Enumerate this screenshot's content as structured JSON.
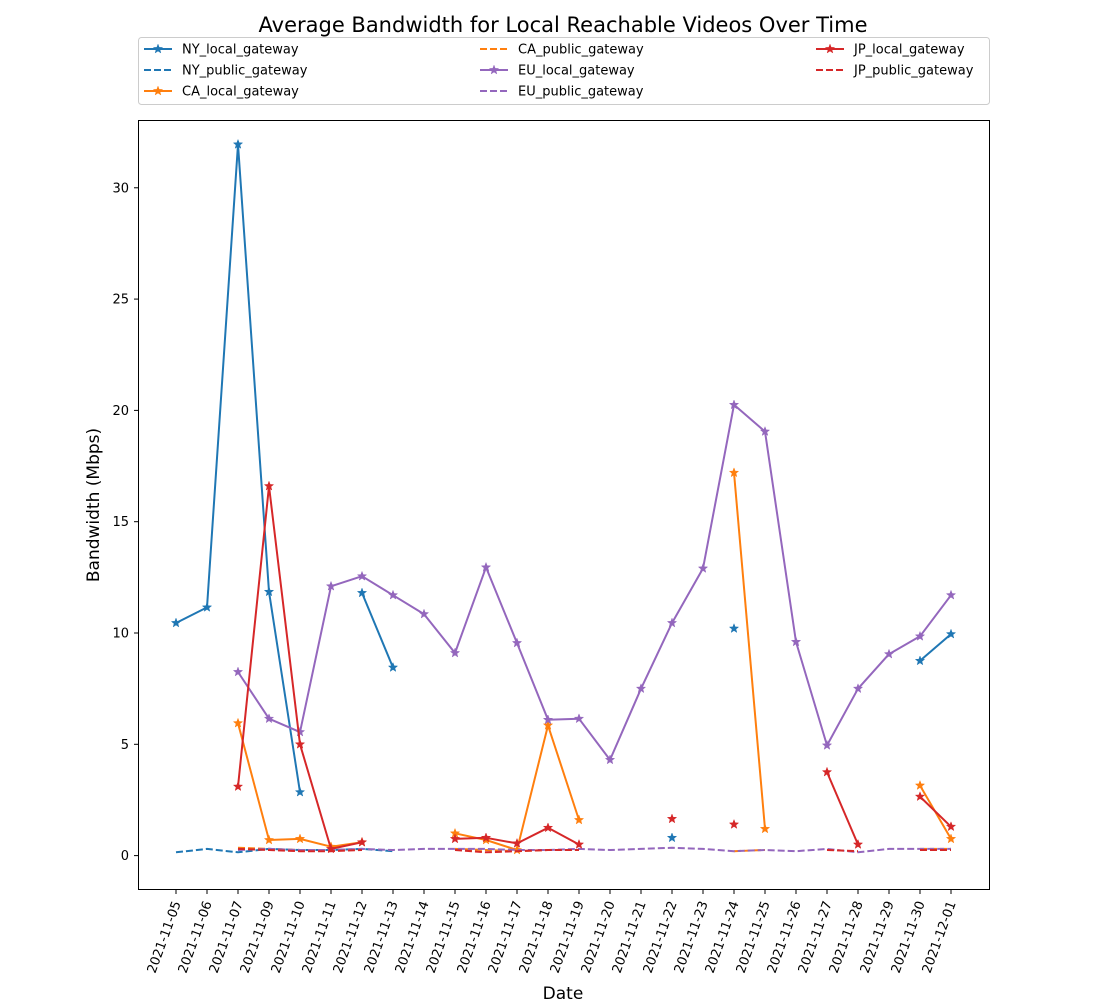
{
  "chart_data": {
    "type": "line",
    "title": "Average Bandwidth for Local Reachable Videos Over Time",
    "xlabel": "Date",
    "ylabel": "Bandwidth (Mbps)",
    "ylim": [
      -1.5,
      33
    ],
    "yticks": [
      0,
      5,
      10,
      15,
      20,
      25,
      30
    ],
    "grid": false,
    "legend_position": "top, above plot, 3 columns",
    "categories": [
      "2021-11-05",
      "2021-11-06",
      "2021-11-07",
      "2021-11-09",
      "2021-11-10",
      "2021-11-11",
      "2021-11-12",
      "2021-11-13",
      "2021-11-14",
      "2021-11-15",
      "2021-11-16",
      "2021-11-17",
      "2021-11-18",
      "2021-11-19",
      "2021-11-20",
      "2021-11-21",
      "2021-11-22",
      "2021-11-23",
      "2021-11-24",
      "2021-11-25",
      "2021-11-26",
      "2021-11-27",
      "2021-11-28",
      "2021-11-29",
      "2021-11-30",
      "2021-12-01"
    ],
    "series": [
      {
        "name": "NY_local_gateway",
        "color": "#1f77b4",
        "style": "solid",
        "marker": "star",
        "values": [
          10.45,
          11.15,
          31.95,
          11.85,
          2.85,
          null,
          11.8,
          8.45,
          null,
          null,
          null,
          null,
          null,
          null,
          null,
          null,
          0.8,
          null,
          10.2,
          null,
          null,
          null,
          null,
          null,
          8.75,
          9.95
        ]
      },
      {
        "name": "NY_public_gateway",
        "color": "#1f77b4",
        "style": "dashed",
        "marker": "none",
        "values": [
          0.15,
          0.3,
          0.15,
          0.3,
          0.25,
          0.25,
          0.3,
          0.2,
          null,
          null,
          null,
          null,
          null,
          null,
          null,
          null,
          null,
          null,
          null,
          null,
          null,
          null,
          null,
          null,
          null,
          null
        ]
      },
      {
        "name": "CA_local_gateway",
        "color": "#ff7f0e",
        "style": "solid",
        "marker": "star",
        "values": [
          null,
          null,
          5.95,
          0.7,
          0.75,
          0.4,
          0.6,
          null,
          null,
          1.0,
          0.7,
          0.25,
          5.85,
          1.6,
          null,
          null,
          null,
          null,
          17.2,
          1.2,
          null,
          null,
          null,
          null,
          3.15,
          0.75
        ]
      },
      {
        "name": "CA_public_gateway",
        "color": "#ff7f0e",
        "style": "dashed",
        "marker": "none",
        "values": [
          null,
          null,
          0.35,
          0.3,
          0.25,
          0.25,
          0.25,
          null,
          null,
          0.3,
          0.25,
          0.2,
          0.25,
          0.25,
          null,
          null,
          null,
          null,
          0.2,
          0.25,
          null,
          null,
          null,
          null,
          0.3,
          0.3
        ]
      },
      {
        "name": "EU_local_gateway",
        "color": "#9467bd",
        "style": "solid",
        "marker": "star",
        "values": [
          null,
          null,
          8.25,
          6.15,
          5.55,
          12.1,
          12.55,
          11.7,
          10.85,
          9.1,
          12.95,
          9.55,
          6.1,
          6.15,
          4.3,
          7.5,
          10.45,
          12.9,
          20.25,
          19.05,
          9.6,
          4.95,
          7.5,
          9.05,
          9.85,
          11.7
        ]
      },
      {
        "name": "EU_public_gateway",
        "color": "#9467bd",
        "style": "dashed",
        "marker": "none",
        "values": [
          null,
          null,
          0.25,
          0.3,
          0.25,
          0.25,
          0.3,
          0.25,
          0.3,
          0.3,
          0.3,
          0.25,
          0.25,
          0.3,
          0.25,
          0.3,
          0.35,
          0.3,
          0.2,
          0.25,
          0.2,
          0.3,
          0.15,
          0.3,
          0.3,
          0.3
        ]
      },
      {
        "name": "JP_local_gateway",
        "color": "#d62728",
        "style": "solid",
        "marker": "star",
        "values": [
          null,
          null,
          3.1,
          16.6,
          5.0,
          0.3,
          0.6,
          null,
          null,
          0.75,
          0.8,
          0.55,
          1.25,
          0.5,
          null,
          null,
          1.65,
          null,
          1.4,
          null,
          null,
          3.75,
          0.5,
          null,
          2.65,
          1.3
        ]
      },
      {
        "name": "JP_public_gateway",
        "color": "#d62728",
        "style": "dashed",
        "marker": "none",
        "values": [
          null,
          null,
          0.3,
          0.25,
          0.2,
          0.2,
          0.25,
          null,
          null,
          0.25,
          0.15,
          0.2,
          0.25,
          0.25,
          null,
          null,
          null,
          null,
          null,
          null,
          null,
          0.25,
          0.2,
          null,
          0.25,
          0.25
        ]
      }
    ]
  }
}
